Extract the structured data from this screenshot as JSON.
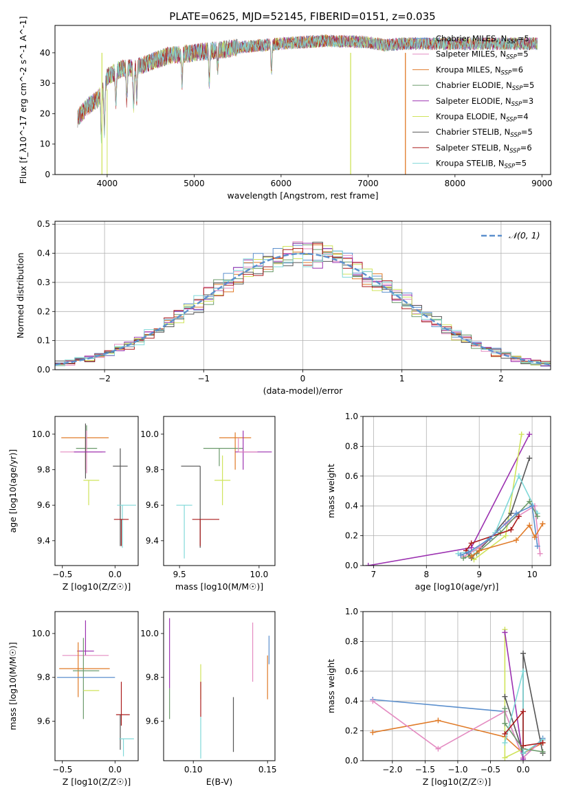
{
  "figure": {
    "title": "PLATE=0625, MJD=52145, FIBERID=0151, z=0.035"
  },
  "colors": {
    "cm_chabrier": "#5b8fcd",
    "cm_salpeter": "#e07a27",
    "cm_kroupa": "#e48bc1",
    "ce_chabrier": "#6a9a6a",
    "ce_salpeter": "#9b30b0",
    "ce_kroupa": "#cfe35a",
    "cs_chabrier": "#555555",
    "cs_salpeter": "#aa1a1a",
    "cs_kroupa": "#7fd8d8",
    "gaussian": "#5b8fcd"
  },
  "chart_data": [
    {
      "id": "spectrum",
      "type": "line",
      "title": "PLATE=0625, MJD=52145, FIBERID=0151, z=0.035",
      "xlabel": "wavelength [Angstrom, rest frame]",
      "ylabel": "Flux [f_λ10^-17 erg cm^-2 s^-1 A^-1]",
      "xlim": [
        3400,
        9100
      ],
      "ylim": [
        0,
        49
      ],
      "xticks": [
        4000,
        5000,
        6000,
        7000,
        8000,
        9000
      ],
      "yticks": [
        0,
        10,
        20,
        30,
        40
      ],
      "legend_position": "right",
      "legend": [
        {
          "label": "Chabrier MILES, N_SSP=5",
          "color": "#5b8fcd"
        },
        {
          "label": "Salpeter MILES, N_SSP=5",
          "color": "#e48bc1"
        },
        {
          "label": "Kroupa MILES, N_SSP=6",
          "color": "#e07a27"
        },
        {
          "label": "Chabrier ELODIE, N_SSP=5",
          "color": "#6a9a6a"
        },
        {
          "label": "Salpeter ELODIE, N_SSP=3",
          "color": "#9b30b0"
        },
        {
          "label": "Kroupa ELODIE, N_SSP=4",
          "color": "#cfe35a"
        },
        {
          "label": "Chabrier STELIB, N_SSP=5",
          "color": "#555555"
        },
        {
          "label": "Salpeter STELIB, N_SSP=6",
          "color": "#aa1a1a"
        },
        {
          "label": "Kroupa STELIB, N_SSP=5",
          "color": "#7fd8d8"
        }
      ],
      "continuum": {
        "x": [
          3650,
          3700,
          3800,
          3900,
          4000,
          4100,
          4200,
          4300,
          4500,
          4700,
          5000,
          5300,
          5600,
          6000,
          6500,
          7000,
          7200,
          7400
        ],
        "y": [
          18,
          20,
          23,
          25,
          32,
          34,
          35,
          35,
          37,
          39,
          40,
          41,
          42,
          43,
          44,
          43.5,
          42.5,
          43
        ]
      },
      "cutoffs": [
        {
          "x": 3940,
          "color": "#cfe35a"
        },
        {
          "x": 6800,
          "color": "#cfe35a"
        },
        {
          "x": 7430,
          "color": "#e07a27"
        }
      ]
    },
    {
      "id": "residuals",
      "type": "histogram",
      "xlabel": "(data-model)/error",
      "ylabel": "Normed distribution",
      "xlim": [
        -2.5,
        2.5
      ],
      "ylim": [
        0,
        0.51
      ],
      "xticks": [
        -2,
        -1,
        0,
        1,
        2
      ],
      "yticks": [
        0.0,
        0.1,
        0.2,
        0.3,
        0.4,
        0.5
      ],
      "grid": true,
      "legend_position": "top-right",
      "gaussian_label": "𝒩(0, 1)",
      "bin_width": 0.1
    },
    {
      "id": "age_vs_Z",
      "type": "errorbar",
      "xlabel": "Z [log10(Z/Z☉)]",
      "ylabel": "age [log10(age/yr)]",
      "xlim": [
        -0.57,
        0.22
      ],
      "ylim": [
        9.26,
        10.1
      ],
      "xticks": [
        -0.5,
        0.0
      ],
      "yticks": [
        9.4,
        9.6,
        9.8,
        10.0
      ],
      "points": [
        {
          "x": -0.28,
          "xerr": [
            0.23,
            0.22
          ],
          "y": 9.98,
          "yerr": [
            0.18,
            0.0
          ],
          "color": "#e07a27"
        },
        {
          "x": -0.27,
          "xerr": [
            0.1,
            0.1
          ],
          "y": 9.92,
          "yerr": [
            0.0,
            0.13
          ],
          "color": "#6a9a6a"
        },
        {
          "x": -0.27,
          "xerr": [
            0.25,
            0.15
          ],
          "y": 9.9,
          "yerr": [
            0.12,
            0.12
          ],
          "color": "#e48bc1"
        },
        {
          "x": -0.28,
          "xerr": [
            0.0,
            0.0
          ],
          "y": 9.9,
          "yerr": [
            0.15,
            0.16
          ],
          "color": "#555555"
        },
        {
          "x": -0.27,
          "xerr": [
            0.12,
            0.18
          ],
          "y": 9.9,
          "yerr": [
            0.0,
            0.0
          ],
          "color": "#9b30b0"
        },
        {
          "x": -0.25,
          "xerr": [
            0.05,
            0.1
          ],
          "y": 9.74,
          "yerr": [
            0.14,
            0.0
          ],
          "color": "#cfe35a"
        },
        {
          "x": 0.05,
          "xerr": [
            0.07,
            0.07
          ],
          "y": 9.82,
          "yerr": [
            0.45,
            0.1
          ],
          "color": "#555555"
        },
        {
          "x": 0.07,
          "xerr": [
            0.05,
            0.13
          ],
          "y": 9.6,
          "yerr": [
            0.24,
            0.0
          ],
          "color": "#7fd8d8"
        },
        {
          "x": 0.06,
          "xerr": [
            0.07,
            0.07
          ],
          "y": 9.52,
          "yerr": [
            0.15,
            0.0
          ],
          "color": "#aa1a1a"
        }
      ]
    },
    {
      "id": "age_vs_mass",
      "type": "errorbar",
      "xlabel": "mass [log10(M/M☉)]",
      "ylabel": "",
      "xlim": [
        9.4,
        10.1
      ],
      "ylim": [
        9.26,
        10.1
      ],
      "xticks": [
        9.5,
        10.0
      ],
      "yticks": [
        9.4,
        9.6,
        9.8,
        10.0
      ],
      "points": [
        {
          "x": 9.85,
          "xerr": [
            0.1,
            0.1
          ],
          "y": 9.98,
          "yerr": [
            0.18,
            0.03
          ],
          "color": "#e07a27"
        },
        {
          "x": 9.75,
          "xerr": [
            0.1,
            0.15
          ],
          "y": 9.92,
          "yerr": [
            0.1,
            0.0
          ],
          "color": "#6a9a6a"
        },
        {
          "x": 9.9,
          "xerr": [
            0.05,
            0.18
          ],
          "y": 9.9,
          "yerr": [
            0.1,
            0.12
          ],
          "color": "#9b30b0"
        },
        {
          "x": 9.87,
          "xerr": [
            0.0,
            0.12
          ],
          "y": 9.9,
          "yerr": [
            0.0,
            0.08
          ],
          "color": "#e48bc1"
        },
        {
          "x": 9.77,
          "xerr": [
            0.05,
            0.05
          ],
          "y": 9.74,
          "yerr": [
            0.14,
            0.14
          ],
          "color": "#cfe35a"
        },
        {
          "x": 9.63,
          "xerr": [
            0.12,
            0.0
          ],
          "y": 9.82,
          "yerr": [
            0.46,
            0.0
          ],
          "color": "#555555"
        },
        {
          "x": 9.53,
          "xerr": [
            0.05,
            0.05
          ],
          "y": 9.6,
          "yerr": [
            0.3,
            0.0
          ],
          "color": "#7fd8d8"
        },
        {
          "x": 9.63,
          "xerr": [
            0.05,
            0.12
          ],
          "y": 9.52,
          "yerr": [
            0.15,
            0.0
          ],
          "color": "#aa1a1a"
        }
      ]
    },
    {
      "id": "weight_vs_age",
      "type": "line",
      "xlabel": "age [log10(age/yr)]",
      "ylabel": "mass weight",
      "xlim": [
        6.8,
        10.35
      ],
      "ylim": [
        0,
        1.0
      ],
      "xticks": [
        7,
        8,
        9,
        10
      ],
      "yticks": [
        0.0,
        0.2,
        0.4,
        0.6,
        0.8,
        1.0
      ],
      "grid": true,
      "series": [
        {
          "color": "#9b30b0",
          "x": [
            6.9,
            8.85,
            9.95
          ],
          "y": [
            0.0,
            0.12,
            0.88
          ]
        },
        {
          "color": "#cfe35a",
          "x": [
            8.8,
            8.9,
            9.5,
            9.8
          ],
          "y": [
            0.07,
            0.04,
            0.2,
            0.88
          ]
        },
        {
          "color": "#555555",
          "x": [
            8.8,
            8.85,
            9.2,
            9.6,
            9.95
          ],
          "y": [
            0.08,
            0.05,
            0.18,
            0.35,
            0.72
          ]
        },
        {
          "color": "#7fd8d8",
          "x": [
            8.6,
            8.9,
            9.3,
            9.75,
            10.1
          ],
          "y": [
            0.08,
            0.1,
            0.22,
            0.6,
            0.35
          ]
        },
        {
          "color": "#e48bc1",
          "x": [
            8.7,
            9.0,
            9.5,
            10.05,
            10.15
          ],
          "y": [
            0.06,
            0.12,
            0.28,
            0.4,
            0.08
          ]
        },
        {
          "color": "#6a9a6a",
          "x": [
            8.7,
            8.95,
            9.4,
            9.95,
            10.1
          ],
          "y": [
            0.05,
            0.08,
            0.22,
            0.43,
            0.33
          ]
        },
        {
          "color": "#aa1a1a",
          "x": [
            8.75,
            8.85,
            9.6,
            9.75
          ],
          "y": [
            0.1,
            0.15,
            0.24,
            0.33
          ]
        },
        {
          "color": "#5b8fcd",
          "x": [
            8.65,
            8.8,
            9.2,
            9.7,
            10.0,
            10.1
          ],
          "y": [
            0.07,
            0.09,
            0.18,
            0.35,
            0.4,
            0.13
          ]
        },
        {
          "color": "#e07a27",
          "x": [
            8.85,
            9.0,
            9.7,
            9.95,
            10.05,
            10.2
          ],
          "y": [
            0.06,
            0.1,
            0.17,
            0.27,
            0.19,
            0.28
          ]
        }
      ]
    },
    {
      "id": "mass_vs_Z",
      "type": "errorbar",
      "xlabel": "Z [log10(Z/Z☉)]",
      "ylabel": "mass [log10(M/M☉)]",
      "xlim": [
        -0.57,
        0.22
      ],
      "ylim": [
        9.42,
        10.1
      ],
      "xticks": [
        -0.5,
        0.0
      ],
      "yticks": [
        9.6,
        9.8,
        10.0
      ],
      "points": [
        {
          "x": -0.28,
          "xerr": [
            0.0,
            0.0
          ],
          "y": 9.98,
          "yerr": [
            0.08,
            0.08
          ],
          "color": "#9b30b0"
        },
        {
          "x": -0.28,
          "xerr": [
            0.08,
            0.08
          ],
          "y": 9.92,
          "yerr": [
            0.0,
            0.0
          ],
          "color": "#9b30b0"
        },
        {
          "x": -0.28,
          "xerr": [
            0.22,
            0.22
          ],
          "y": 9.9,
          "yerr": [
            0.0,
            0.0
          ],
          "color": "#e48bc1"
        },
        {
          "x": -0.35,
          "xerr": [
            0.18,
            0.3
          ],
          "y": 9.84,
          "yerr": [
            0.13,
            0.12
          ],
          "color": "#e07a27"
        },
        {
          "x": -0.3,
          "xerr": [
            0.1,
            0.15
          ],
          "y": 9.83,
          "yerr": [
            0.22,
            0.15
          ],
          "color": "#6a9a6a"
        },
        {
          "x": -0.25,
          "xerr": [
            0.3,
            0.25
          ],
          "y": 9.8,
          "yerr": [
            0.0,
            0.0
          ],
          "color": "#5b8fcd"
        },
        {
          "x": -0.25,
          "xerr": [
            0.05,
            0.1
          ],
          "y": 9.74,
          "yerr": [
            0.0,
            0.0
          ],
          "color": "#cfe35a"
        },
        {
          "x": 0.06,
          "xerr": [
            0.05,
            0.08
          ],
          "y": 9.63,
          "yerr": [
            0.05,
            0.15
          ],
          "color": "#aa1a1a"
        },
        {
          "x": 0.05,
          "xerr": [
            0.0,
            0.0
          ],
          "y": 9.63,
          "yerr": [
            0.16,
            0.0
          ],
          "color": "#555555"
        },
        {
          "x": 0.08,
          "xerr": [
            0.04,
            0.1
          ],
          "y": 9.52,
          "yerr": [
            0.08,
            0.0
          ],
          "color": "#7fd8d8"
        }
      ]
    },
    {
      "id": "mass_vs_EBV",
      "type": "errorbar",
      "xlabel": "E(B-V)",
      "ylabel": "",
      "xlim": [
        0.08,
        0.155
      ],
      "ylim": [
        9.42,
        10.1
      ],
      "xticks": [
        0.1,
        0.15
      ],
      "yticks": [
        9.6,
        9.8,
        10.0
      ],
      "points": [
        {
          "x": 0.084,
          "xerr": [
            0.0,
            0.0
          ],
          "y": 9.9,
          "yerr": [
            0.15,
            0.17
          ],
          "color": "#9b30b0"
        },
        {
          "x": 0.084,
          "xerr": [
            0.0,
            0.0
          ],
          "y": 9.7,
          "yerr": [
            0.09,
            0.05
          ],
          "color": "#6a9a6a"
        },
        {
          "x": 0.105,
          "xerr": [
            0.0,
            0.0
          ],
          "y": 9.78,
          "yerr": [
            0.08,
            0.08
          ],
          "color": "#cfe35a"
        },
        {
          "x": 0.105,
          "xerr": [
            0.0,
            0.0
          ],
          "y": 9.68,
          "yerr": [
            0.06,
            0.1
          ],
          "color": "#aa1a1a"
        },
        {
          "x": 0.105,
          "xerr": [
            0.0,
            0.0
          ],
          "y": 9.55,
          "yerr": [
            0.12,
            0.07
          ],
          "color": "#7fd8d8"
        },
        {
          "x": 0.127,
          "xerr": [
            0.0,
            0.0
          ],
          "y": 9.58,
          "yerr": [
            0.12,
            0.13
          ],
          "color": "#555555"
        },
        {
          "x": 0.14,
          "xerr": [
            0.0,
            0.0
          ],
          "y": 9.92,
          "yerr": [
            0.14,
            0.13
          ],
          "color": "#e48bc1"
        },
        {
          "x": 0.15,
          "xerr": [
            0.0,
            0.0
          ],
          "y": 9.8,
          "yerr": [
            0.1,
            0.1
          ],
          "color": "#e07a27"
        },
        {
          "x": 0.151,
          "xerr": [
            0.0,
            0.0
          ],
          "y": 9.96,
          "yerr": [
            0.1,
            0.03
          ],
          "color": "#5b8fcd"
        }
      ]
    },
    {
      "id": "weight_vs_Z",
      "type": "line",
      "xlabel": "Z [log10(Z/Z☉)]",
      "ylabel": "mass weight",
      "xlim": [
        -2.45,
        0.42
      ],
      "ylim": [
        0,
        1.0
      ],
      "xticks": [
        -2.0,
        -1.5,
        -1.0,
        -0.5,
        0.0
      ],
      "yticks": [
        0.0,
        0.2,
        0.4,
        0.6,
        0.8,
        1.0
      ],
      "grid": true,
      "series": [
        {
          "color": "#5b8fcd",
          "x": [
            -2.3,
            -0.28,
            0.0,
            0.3
          ],
          "y": [
            0.41,
            0.33,
            0.02,
            0.15
          ]
        },
        {
          "color": "#e07a27",
          "x": [
            -2.3,
            -1.3,
            -0.28,
            0.0,
            0.3
          ],
          "y": [
            0.19,
            0.27,
            0.16,
            0.05,
            0.12
          ]
        },
        {
          "color": "#e48bc1",
          "x": [
            -2.3,
            -1.3,
            -0.28,
            0.0,
            0.3
          ],
          "y": [
            0.4,
            0.08,
            0.33,
            0.02,
            0.14
          ]
        },
        {
          "color": "#cfe35a",
          "x": [
            -0.28,
            -0.28,
            0.0
          ],
          "y": [
            0.88,
            0.02,
            0.08
          ]
        },
        {
          "color": "#9b30b0",
          "x": [
            -0.28,
            0.0
          ],
          "y": [
            0.86,
            0.01
          ]
        },
        {
          "color": "#555555",
          "x": [
            -0.28,
            0.0,
            0.0,
            0.3
          ],
          "y": [
            0.43,
            0.05,
            0.72,
            0.05
          ]
        },
        {
          "color": "#6a9a6a",
          "x": [
            -0.28,
            -0.28,
            0.0,
            0.3
          ],
          "y": [
            0.35,
            0.25,
            0.08,
            0.06
          ]
        },
        {
          "color": "#7fd8d8",
          "x": [
            -0.28,
            0.0,
            0.0,
            0.3
          ],
          "y": [
            0.12,
            0.6,
            0.05,
            0.14
          ]
        },
        {
          "color": "#aa1a1a",
          "x": [
            -0.28,
            0.0,
            0.0,
            0.3
          ],
          "y": [
            0.18,
            0.33,
            0.1,
            0.12
          ]
        }
      ]
    }
  ]
}
